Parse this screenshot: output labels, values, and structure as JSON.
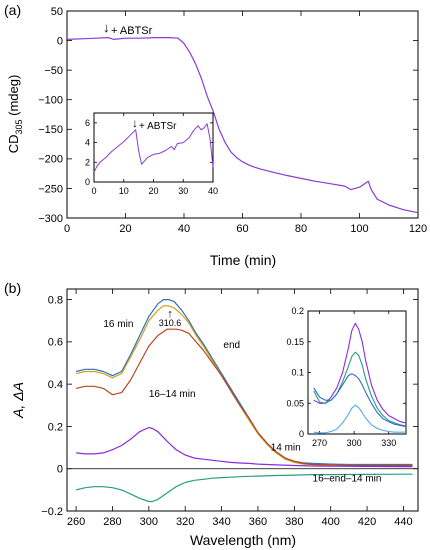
{
  "chart_data": [
    {
      "panel_label": "(a)",
      "type": "line",
      "xlabel": "Time (min)",
      "ylabel_main": "CD",
      "ylabel_sub": "305",
      "ylabel_unit": " (mdeg)",
      "xlim": [
        0,
        120
      ],
      "ylim": [
        -300,
        50
      ],
      "xticks": [
        0,
        20,
        40,
        60,
        80,
        100,
        120
      ],
      "yticks": [
        50,
        0,
        -50,
        -100,
        -150,
        -200,
        -250,
        -300
      ],
      "annotation": {
        "text": "+ ABTSr",
        "arrow": "↓",
        "x": 14,
        "y": 5
      },
      "series": [
        {
          "color": "#8a3bd6",
          "x": [
            0,
            5,
            10,
            14,
            16,
            20,
            25,
            30,
            35,
            38,
            40,
            42,
            44,
            46,
            48,
            50,
            52,
            54,
            56,
            58,
            60,
            62,
            64,
            66,
            70,
            75,
            80,
            85,
            90,
            95,
            97,
            100,
            103,
            104,
            106,
            110,
            115,
            120
          ],
          "y": [
            2,
            3,
            4,
            5,
            2,
            4,
            4,
            5,
            5,
            4,
            -5,
            -20,
            -40,
            -65,
            -95,
            -120,
            -150,
            -172,
            -188,
            -198,
            -205,
            -210,
            -214,
            -217,
            -222,
            -228,
            -233,
            -238,
            -242,
            -246,
            -252,
            -248,
            -238,
            -252,
            -268,
            -278,
            -286,
            -291
          ]
        }
      ],
      "inset": {
        "type": "line",
        "xlim": [
          0,
          40
        ],
        "ylim": [
          0,
          7
        ],
        "xticks": [
          0,
          10,
          20,
          30,
          40
        ],
        "yticks": [
          0,
          2,
          4,
          6
        ],
        "annotation": {
          "text": "+ ABTSr",
          "arrow": "↓",
          "x": 14,
          "y": 5.4
        },
        "series": [
          {
            "color": "#8a3bd6",
            "x": [
              0,
              1,
              2,
              4,
              6,
              8,
              10,
              12,
              13,
              14,
              15,
              16,
              18,
              20,
              22,
              24,
              26,
              27,
              28,
              30,
              32,
              33,
              34,
              35,
              36,
              37,
              38,
              39,
              40
            ],
            "y": [
              1.0,
              1.6,
              2.0,
              2.5,
              3.1,
              3.6,
              4.1,
              4.7,
              5.0,
              5.3,
              3.2,
              1.8,
              2.5,
              2.8,
              2.9,
              3.2,
              3.6,
              3.3,
              3.9,
              4.0,
              4.5,
              5.0,
              5.4,
              5.7,
              5.3,
              5.5,
              5.9,
              4.4,
              1.5
            ]
          }
        ]
      }
    },
    {
      "panel_label": "(b)",
      "type": "line",
      "xlabel": "Wavelength (nm)",
      "ylabel": "A, ΔA",
      "xlim": [
        255,
        448
      ],
      "ylim": [
        -0.2,
        0.85
      ],
      "xticks": [
        260,
        280,
        300,
        320,
        340,
        360,
        380,
        400,
        420,
        440
      ],
      "yticks": [
        0.8,
        0.6,
        0.4,
        0.2,
        0,
        -0.2
      ],
      "peak_annotation": {
        "text": "310.6",
        "arrow": "↑",
        "x": 310.6
      },
      "series": [
        {
          "name": "16 min",
          "color": "#2c6fc0",
          "x": [
            260,
            265,
            270,
            275,
            280,
            285,
            290,
            295,
            300,
            305,
            308,
            311,
            314,
            318,
            322,
            326,
            330,
            335,
            340,
            345,
            350,
            355,
            360,
            365,
            370,
            375,
            380,
            385,
            390,
            400,
            410,
            420,
            430,
            440,
            445
          ],
          "y": [
            0.46,
            0.47,
            0.47,
            0.46,
            0.44,
            0.46,
            0.54,
            0.63,
            0.72,
            0.78,
            0.8,
            0.8,
            0.79,
            0.75,
            0.7,
            0.64,
            0.59,
            0.52,
            0.45,
            0.38,
            0.31,
            0.24,
            0.17,
            0.12,
            0.08,
            0.05,
            0.035,
            0.028,
            0.025,
            0.022,
            0.02,
            0.02,
            0.02,
            0.02,
            0.02
          ]
        },
        {
          "name": "end",
          "color": "#d4a017",
          "x": [
            260,
            265,
            270,
            275,
            280,
            285,
            290,
            295,
            300,
            305,
            308,
            311,
            314,
            318,
            322,
            326,
            330,
            335,
            340,
            345,
            350,
            355,
            360,
            365,
            370,
            375,
            380,
            385,
            390,
            400,
            410,
            420,
            430,
            440,
            445
          ],
          "y": [
            0.45,
            0.46,
            0.46,
            0.45,
            0.43,
            0.45,
            0.53,
            0.61,
            0.7,
            0.75,
            0.77,
            0.77,
            0.76,
            0.73,
            0.69,
            0.63,
            0.58,
            0.51,
            0.44,
            0.37,
            0.3,
            0.23,
            0.165,
            0.115,
            0.075,
            0.045,
            0.03,
            0.022,
            0.02,
            0.018,
            0.016,
            0.015,
            0.015,
            0.015,
            0.015
          ]
        },
        {
          "name": "16–14 min",
          "color": "#b5481e",
          "x": [
            260,
            265,
            270,
            275,
            280,
            285,
            290,
            295,
            300,
            305,
            310,
            315,
            318,
            322,
            326,
            330,
            335,
            340,
            345,
            350,
            355,
            360,
            365,
            370,
            375,
            380,
            385,
            390,
            400,
            410,
            420,
            430,
            440,
            445
          ],
          "y": [
            0.38,
            0.39,
            0.39,
            0.38,
            0.35,
            0.36,
            0.42,
            0.5,
            0.58,
            0.63,
            0.66,
            0.66,
            0.655,
            0.64,
            0.6,
            0.56,
            0.5,
            0.44,
            0.37,
            0.3,
            0.24,
            0.17,
            0.12,
            0.08,
            0.05,
            0.035,
            0.025,
            0.02,
            0.018,
            0.016,
            0.015,
            0.015,
            0.015,
            0.015
          ]
        },
        {
          "name": "14 min",
          "color": "#8a2be2",
          "x": [
            260,
            265,
            270,
            275,
            280,
            285,
            290,
            295,
            300,
            302,
            305,
            310,
            315,
            320,
            325,
            330,
            335,
            340,
            345,
            350,
            355,
            360,
            365,
            370,
            380,
            390,
            400,
            420,
            440,
            445
          ],
          "y": [
            0.075,
            0.07,
            0.07,
            0.075,
            0.09,
            0.11,
            0.14,
            0.175,
            0.195,
            0.19,
            0.175,
            0.13,
            0.09,
            0.065,
            0.05,
            0.045,
            0.04,
            0.035,
            0.03,
            0.027,
            0.025,
            0.022,
            0.02,
            0.018,
            0.015,
            0.013,
            0.012,
            0.011,
            0.01,
            0.01
          ]
        },
        {
          "name": "16–end–14 min",
          "color": "#2a9d7e",
          "x": [
            260,
            265,
            270,
            275,
            280,
            285,
            290,
            295,
            300,
            302,
            305,
            310,
            315,
            320,
            325,
            330,
            335,
            340,
            345,
            350,
            360,
            370,
            380,
            390,
            400,
            420,
            440,
            445
          ],
          "y": [
            -0.1,
            -0.09,
            -0.085,
            -0.085,
            -0.09,
            -0.1,
            -0.12,
            -0.14,
            -0.155,
            -0.155,
            -0.145,
            -0.115,
            -0.085,
            -0.065,
            -0.055,
            -0.05,
            -0.045,
            -0.042,
            -0.04,
            -0.038,
            -0.035,
            -0.032,
            -0.03,
            -0.028,
            -0.028,
            -0.027,
            -0.026,
            -0.026
          ]
        }
      ],
      "labels": [
        {
          "text": "16 min",
          "color": "#2c6fc0",
          "x": 275,
          "y": 0.67
        },
        {
          "text": "end",
          "color": "#d4a017",
          "x": 341,
          "y": 0.57
        },
        {
          "text": "16–14 min",
          "color": "#b5481e",
          "x": 300,
          "y": 0.34
        },
        {
          "text": "14 min",
          "color": "#8a2be2",
          "x": 367,
          "y": 0.085
        },
        {
          "text": "16–end–14 min",
          "color": "#2a9d7e",
          "x": 390,
          "y": -0.06
        }
      ],
      "inset": {
        "type": "line",
        "xlim": [
          260,
          345
        ],
        "ylim": [
          0,
          0.2
        ],
        "xticks": [
          270,
          300,
          330
        ],
        "yticks": [
          0,
          0.05,
          0.1,
          0.15,
          0.2
        ],
        "series": [
          {
            "color": "#8a2be2",
            "x": [
              265,
              270,
              275,
              280,
              285,
              290,
              295,
              298,
              301,
              304,
              307,
              310,
              315,
              320,
              325,
              330,
              335,
              340,
              345
            ],
            "y": [
              0.055,
              0.05,
              0.05,
              0.06,
              0.075,
              0.1,
              0.14,
              0.168,
              0.18,
              0.17,
              0.15,
              0.12,
              0.08,
              0.055,
              0.04,
              0.03,
              0.025,
              0.02,
              0.018
            ]
          },
          {
            "color": "#2a9d7e",
            "x": [
              265,
              270,
              275,
              280,
              285,
              290,
              295,
              298,
              301,
              304,
              307,
              310,
              315,
              320,
              325,
              330,
              335,
              340,
              345
            ],
            "y": [
              0.07,
              0.052,
              0.05,
              0.055,
              0.065,
              0.085,
              0.11,
              0.126,
              0.133,
              0.128,
              0.112,
              0.09,
              0.062,
              0.042,
              0.03,
              0.022,
              0.018,
              0.015,
              0.013
            ]
          },
          {
            "color": "#2c6fc0",
            "x": [
              265,
              270,
              275,
              280,
              285,
              290,
              295,
              298,
              301,
              304,
              307,
              310,
              315,
              320,
              325,
              330,
              335,
              340,
              345
            ],
            "y": [
              0.075,
              0.06,
              0.055,
              0.055,
              0.065,
              0.08,
              0.095,
              0.098,
              0.095,
              0.09,
              0.08,
              0.068,
              0.05,
              0.035,
              0.025,
              0.02,
              0.016,
              0.014,
              0.012
            ]
          },
          {
            "color": "#5aa9e6",
            "x": [
              265,
              270,
              275,
              280,
              285,
              290,
              295,
              298,
              301,
              304,
              307,
              310,
              315,
              320,
              325,
              330,
              335,
              340,
              345
            ],
            "y": [
              0.003,
              0.002,
              0.002,
              0.004,
              0.008,
              0.018,
              0.032,
              0.042,
              0.047,
              0.043,
              0.035,
              0.026,
              0.015,
              0.009,
              0.006,
              0.004,
              0.003,
              0.003,
              0.003
            ]
          }
        ]
      }
    }
  ]
}
